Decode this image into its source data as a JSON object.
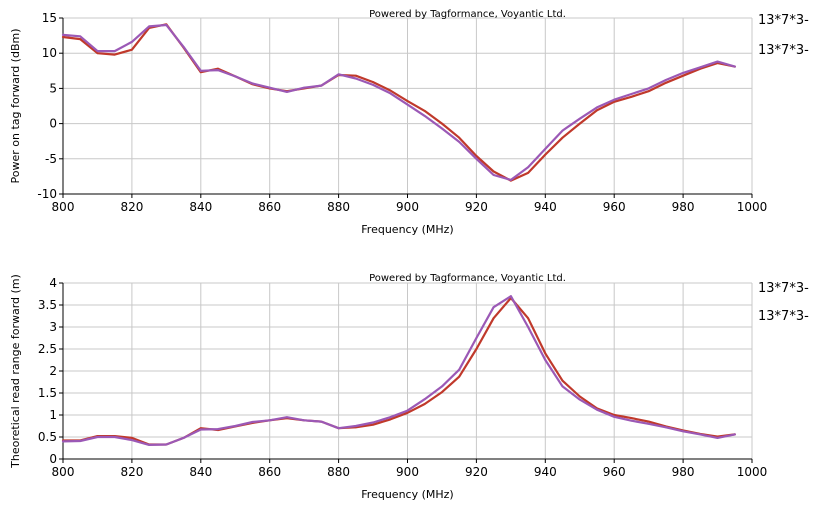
{
  "chart_data": [
    {
      "type": "line",
      "title": "Powered by Tagformance, Voyantic Ltd.",
      "xlabel": "Frequency (MHz)",
      "ylabel": "Power on tag forward (dBm)",
      "xlim": [
        800,
        1000
      ],
      "ylim": [
        -10,
        15
      ],
      "xticks": [
        "800",
        "820",
        "840",
        "860",
        "880",
        "900",
        "920",
        "940",
        "960",
        "980",
        "1000"
      ],
      "yticks": [
        "15",
        "10",
        "5",
        "0",
        "-5",
        "-10"
      ],
      "grid": true,
      "legend_position": "right",
      "legend": [
        "13*7*3-",
        "13*7*3-"
      ],
      "series": [
        {
          "color": "#c0392b",
          "x": [
            800,
            805,
            810,
            815,
            820,
            825,
            830,
            835,
            840,
            845,
            850,
            855,
            860,
            865,
            870,
            875,
            880,
            885,
            890,
            895,
            900,
            905,
            910,
            915,
            920,
            925,
            930,
            935,
            940,
            945,
            950,
            955,
            960,
            965,
            970,
            975,
            980,
            985,
            990,
            995
          ],
          "y": [
            12.3,
            12.0,
            10.0,
            9.8,
            10.5,
            13.6,
            14.1,
            10.8,
            7.3,
            7.8,
            6.7,
            5.6,
            5.0,
            4.6,
            5.0,
            5.4,
            6.9,
            6.8,
            5.9,
            4.7,
            3.2,
            1.8,
            0.0,
            -2.0,
            -4.6,
            -6.8,
            -8.1,
            -7.0,
            -4.4,
            -2.0,
            0.0,
            1.9,
            3.1,
            3.8,
            4.6,
            5.8,
            6.8,
            7.8,
            8.6,
            8.1
          ]
        },
        {
          "color": "#9b59b6",
          "x": [
            800,
            805,
            810,
            815,
            820,
            825,
            830,
            835,
            840,
            845,
            850,
            855,
            860,
            865,
            870,
            875,
            880,
            885,
            890,
            895,
            900,
            905,
            910,
            915,
            920,
            925,
            930,
            935,
            940,
            945,
            950,
            955,
            960,
            965,
            970,
            975,
            980,
            985,
            990,
            995
          ],
          "y": [
            12.6,
            12.4,
            10.3,
            10.3,
            11.6,
            13.8,
            14.0,
            10.9,
            7.5,
            7.6,
            6.7,
            5.7,
            5.1,
            4.5,
            5.1,
            5.4,
            7.0,
            6.4,
            5.5,
            4.3,
            2.7,
            1.1,
            -0.7,
            -2.6,
            -5.0,
            -7.3,
            -8.0,
            -6.2,
            -3.6,
            -1.0,
            0.7,
            2.3,
            3.4,
            4.2,
            5.0,
            6.2,
            7.2,
            8.0,
            8.8,
            8.1
          ]
        }
      ]
    },
    {
      "type": "line",
      "title": "Powered by Tagformance, Voyantic Ltd.",
      "xlabel": "Frequency (MHz)",
      "ylabel": "Theoretical read range forward (m)",
      "xlim": [
        800,
        1000
      ],
      "ylim": [
        0,
        4
      ],
      "xticks": [
        "800",
        "820",
        "840",
        "860",
        "880",
        "900",
        "920",
        "940",
        "960",
        "980",
        "1000"
      ],
      "yticks": [
        "4",
        "3.5",
        "3",
        "2.5",
        "2",
        "1.5",
        "1",
        "0.5",
        "0"
      ],
      "grid": true,
      "legend_position": "right",
      "legend": [
        "13*7*3-",
        "13*7*3-"
      ],
      "series": [
        {
          "color": "#c0392b",
          "x": [
            800,
            805,
            810,
            815,
            820,
            825,
            830,
            835,
            840,
            845,
            850,
            855,
            860,
            865,
            870,
            875,
            880,
            885,
            890,
            895,
            900,
            905,
            910,
            915,
            920,
            925,
            930,
            935,
            940,
            945,
            950,
            955,
            960,
            965,
            970,
            975,
            980,
            985,
            990,
            995
          ],
          "y": [
            0.42,
            0.42,
            0.52,
            0.52,
            0.48,
            0.33,
            0.33,
            0.48,
            0.7,
            0.66,
            0.74,
            0.82,
            0.88,
            0.93,
            0.88,
            0.85,
            0.7,
            0.72,
            0.78,
            0.9,
            1.05,
            1.25,
            1.52,
            1.87,
            2.5,
            3.2,
            3.66,
            3.2,
            2.4,
            1.78,
            1.42,
            1.15,
            1.0,
            0.93,
            0.85,
            0.74,
            0.65,
            0.57,
            0.51,
            0.56
          ]
        },
        {
          "color": "#9b59b6",
          "x": [
            800,
            805,
            810,
            815,
            820,
            825,
            830,
            835,
            840,
            845,
            850,
            855,
            860,
            865,
            870,
            875,
            880,
            885,
            890,
            895,
            900,
            905,
            910,
            915,
            920,
            925,
            930,
            935,
            940,
            945,
            950,
            955,
            960,
            965,
            970,
            975,
            980,
            985,
            990,
            995
          ],
          "y": [
            0.4,
            0.41,
            0.5,
            0.5,
            0.43,
            0.32,
            0.33,
            0.48,
            0.67,
            0.68,
            0.75,
            0.84,
            0.88,
            0.95,
            0.88,
            0.85,
            0.7,
            0.75,
            0.83,
            0.95,
            1.1,
            1.36,
            1.65,
            2.03,
            2.75,
            3.45,
            3.7,
            3.0,
            2.25,
            1.65,
            1.35,
            1.12,
            0.96,
            0.87,
            0.8,
            0.72,
            0.63,
            0.56,
            0.48,
            0.56
          ]
        }
      ]
    }
  ]
}
